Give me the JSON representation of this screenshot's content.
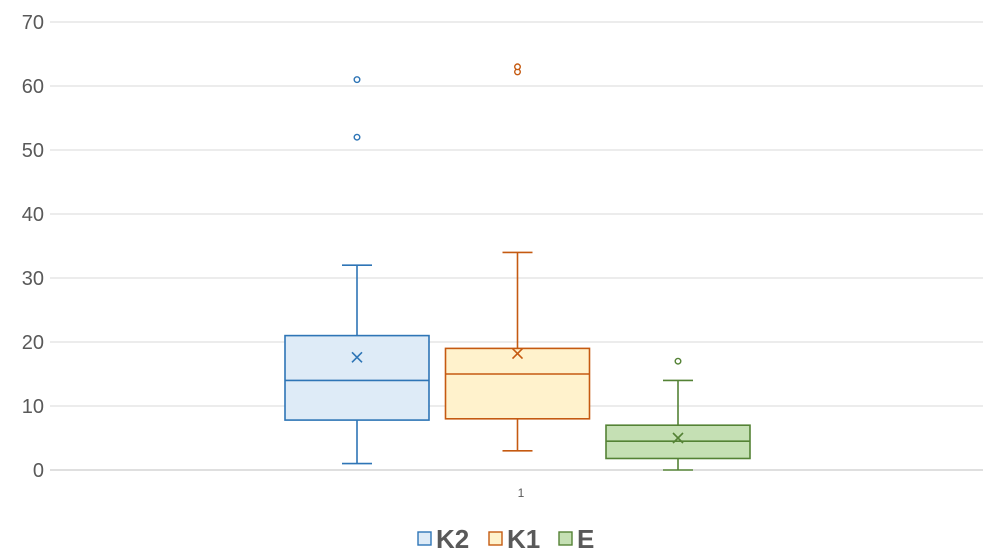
{
  "chart_data": {
    "type": "box",
    "categories": [
      "1"
    ],
    "ylim": [
      0,
      70
    ],
    "yticks": [
      "0",
      "10",
      "20",
      "30",
      "40",
      "50",
      "60",
      "70"
    ],
    "grid": true,
    "legend_position": "bottom",
    "series": [
      {
        "name": "K2",
        "color": "#2E75B6",
        "fill": "#DEEBF7",
        "min": 1,
        "q1": 7.8,
        "median": 14,
        "q3": 21,
        "max": 32,
        "mean": 17.6,
        "outliers": [
          52,
          61
        ]
      },
      {
        "name": "K1",
        "color": "#C55A11",
        "fill": "#FFF2CC",
        "min": 3,
        "q1": 8,
        "median": 15,
        "q3": 19,
        "max": 34,
        "mean": 18.2,
        "outliers": [
          62.2,
          63
        ]
      },
      {
        "name": "E",
        "color": "#548235",
        "fill": "#C5E0B4",
        "min": 0,
        "q1": 1.8,
        "median": 4.5,
        "q3": 7,
        "max": 14,
        "mean": 5,
        "outliers": [
          17
        ]
      }
    ]
  }
}
